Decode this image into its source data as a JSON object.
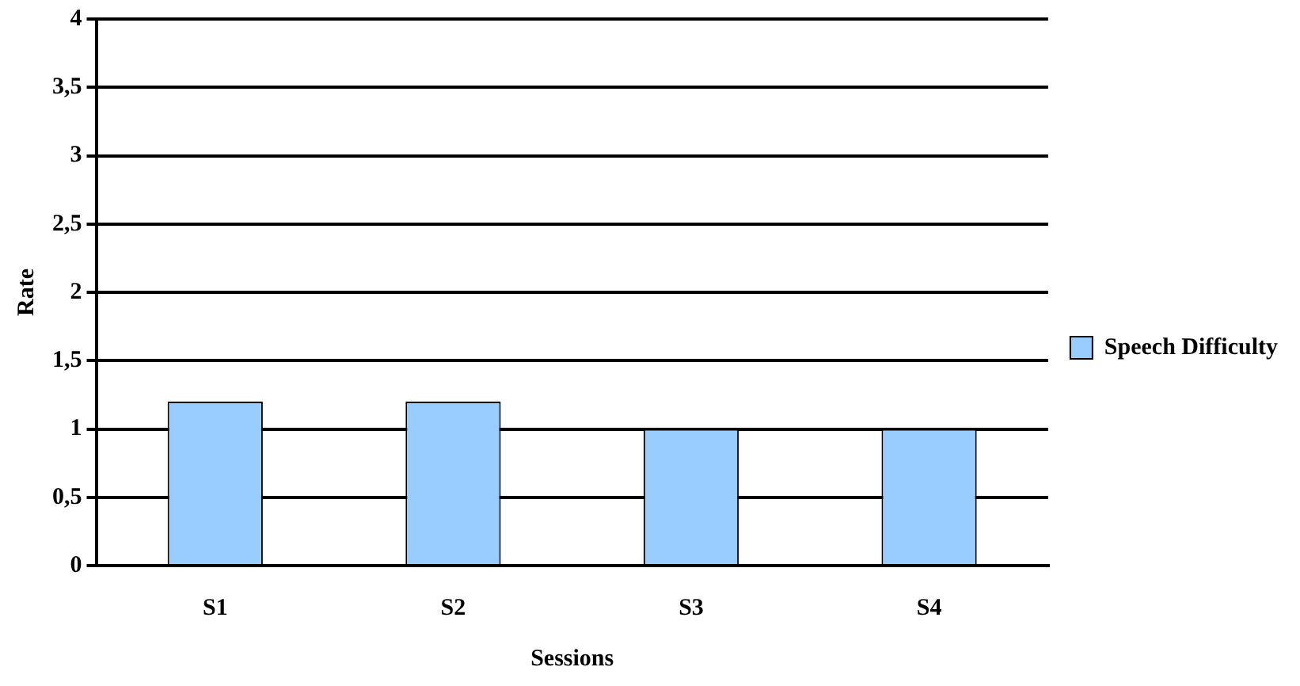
{
  "chart_data": {
    "type": "bar",
    "xlabel": "Sessions",
    "ylabel": "Rate",
    "categories": [
      "S1",
      "S2",
      "S3",
      "S4"
    ],
    "series": [
      {
        "name": "Speech Difficulty",
        "color": "#99ccff",
        "values": [
          1.2,
          1.2,
          1,
          1
        ]
      }
    ],
    "ylim": [
      0,
      4
    ],
    "yticks": [
      0,
      {
        "value": 0.5,
        "label": "0,5"
      },
      1,
      {
        "value": 1.5,
        "label": "1,5"
      },
      2,
      {
        "value": 2.5,
        "label": "2,5"
      },
      3,
      {
        "value": 3.5,
        "label": "3,5"
      },
      4
    ],
    "grid": "y",
    "legend": "right"
  }
}
